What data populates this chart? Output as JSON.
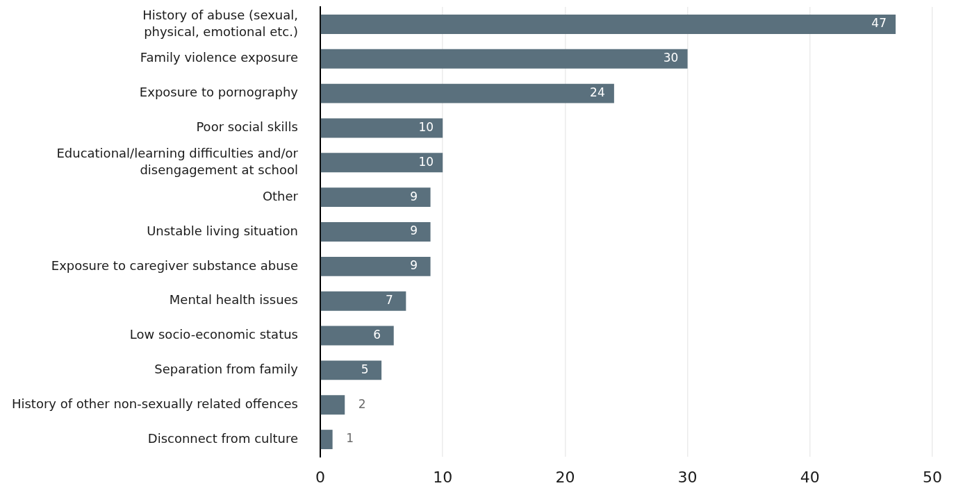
{
  "chart_data": {
    "type": "bar",
    "orientation": "horizontal",
    "categories": [
      "History of abuse (sexual,\nphysical, emotional etc.)",
      "Family violence exposure",
      "Exposure to pornography",
      "Poor social skills",
      "Educational/learning difficulties and/or\ndisengagement at school",
      "Other",
      "Unstable living situation",
      "Exposure to caregiver substance abuse",
      "Mental health issues",
      "Low socio-economic status",
      "Separation from family",
      "History of other non-sexually related offences",
      "Disconnect from culture"
    ],
    "values": [
      47,
      30,
      24,
      10,
      10,
      9,
      9,
      9,
      7,
      6,
      5,
      2,
      1
    ],
    "color": "#5a707d",
    "xlim": [
      0,
      50
    ],
    "xticks": [
      0,
      10,
      20,
      30,
      40,
      50
    ],
    "grid": "x",
    "data_labels": true
  }
}
